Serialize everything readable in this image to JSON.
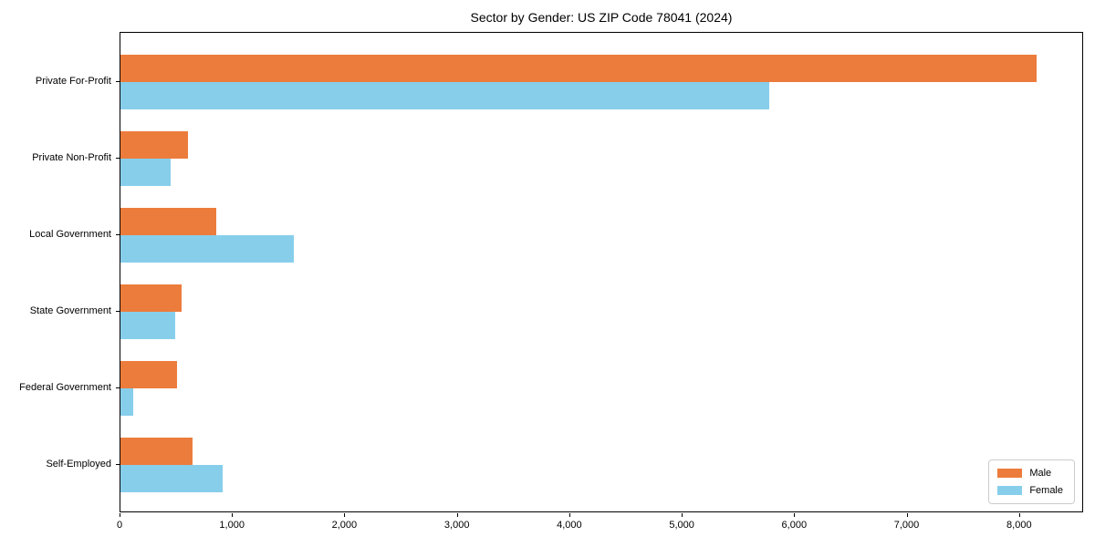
{
  "chart_data": {
    "type": "bar",
    "orientation": "horizontal",
    "title": "Sector by Gender: US ZIP Code 78041 (2024)",
    "categories": [
      "Private For-Profit",
      "Private Non-Profit",
      "Local Government",
      "State Government",
      "Federal Government",
      "Self-Employed"
    ],
    "series": [
      {
        "name": "Male",
        "color": "#EC7C3C",
        "values": [
          8150,
          600,
          850,
          540,
          500,
          640
        ]
      },
      {
        "name": "Female",
        "color": "#87CEEB",
        "values": [
          5770,
          450,
          1540,
          490,
          110,
          910
        ]
      }
    ],
    "xlabel": "",
    "ylabel": "",
    "xlim": [
      0,
      8570
    ],
    "xticks": [
      0,
      1000,
      2000,
      3000,
      4000,
      5000,
      6000,
      7000,
      8000
    ],
    "xtick_labels": [
      "0",
      "1,000",
      "2,000",
      "3,000",
      "4,000",
      "5,000",
      "6,000",
      "7,000",
      "8,000"
    ],
    "grid": false,
    "legend_position": "lower right",
    "colors": {
      "axis": "#000000",
      "background": "#ffffff",
      "legend_border": "#cccccc"
    }
  }
}
